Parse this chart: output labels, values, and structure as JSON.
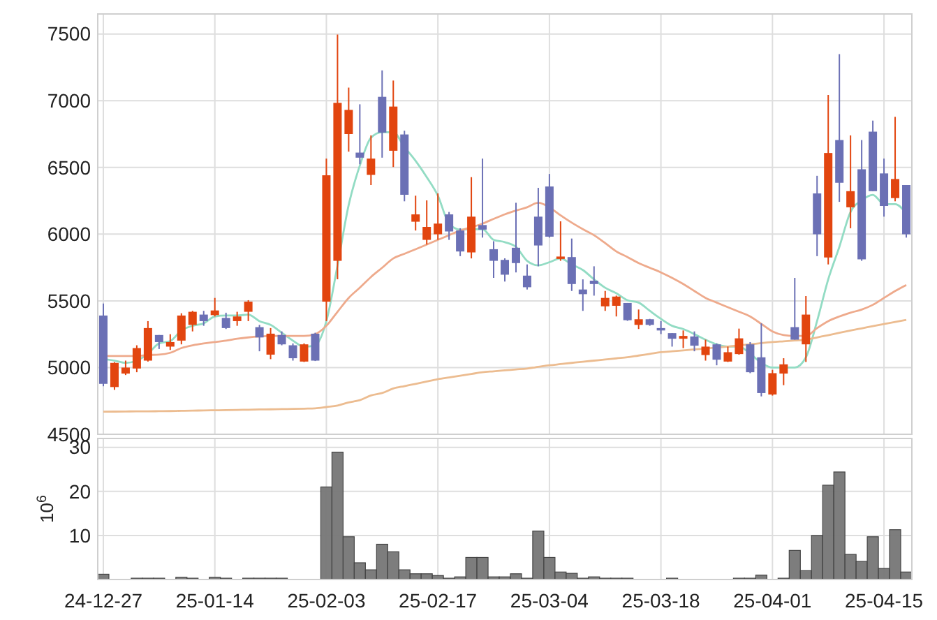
{
  "chart_data": [
    {
      "type": "candlestick",
      "categories": [
        null,
        null,
        null,
        null,
        null,
        null,
        null,
        null,
        null,
        null,
        null,
        null,
        null,
        null,
        null,
        null,
        null,
        null,
        null,
        null,
        null,
        null,
        null,
        null,
        null,
        null,
        null,
        null,
        null,
        null,
        null,
        null,
        null,
        null,
        null,
        null,
        null,
        null,
        null,
        null,
        null,
        null,
        null,
        null,
        null,
        null,
        null,
        null,
        null,
        null,
        null,
        null,
        null,
        null,
        null,
        null,
        null,
        null,
        null,
        null,
        null,
        null,
        null,
        null,
        null,
        null,
        null,
        null,
        null,
        null,
        null,
        null,
        null
      ],
      "ylim": [
        4500,
        7650
      ],
      "yticks": [
        4500,
        5000,
        5500,
        6000,
        6500,
        7000,
        7500
      ],
      "grid": true,
      "tick_labels": "y",
      "ohlc": [
        [
          5390,
          5480,
          4860,
          4878
        ],
        [
          4854,
          5040,
          4833,
          5035
        ],
        [
          4955,
          5052,
          4944,
          5000
        ],
        [
          4993,
          5167,
          4965,
          5146
        ],
        [
          5052,
          5348,
          5045,
          5296
        ],
        [
          5244,
          5244,
          5139,
          5191
        ],
        [
          5157,
          5250,
          5132,
          5191
        ],
        [
          5202,
          5407,
          5174,
          5390
        ],
        [
          5320,
          5425,
          5271,
          5418
        ],
        [
          5397,
          5425,
          5313,
          5348
        ],
        [
          5393,
          5522,
          5383,
          5428
        ],
        [
          5372,
          5411,
          5289,
          5296
        ],
        [
          5348,
          5418,
          5313,
          5383
        ],
        [
          5418,
          5505,
          5348,
          5494
        ],
        [
          5303,
          5320,
          5122,
          5226
        ],
        [
          5097,
          5296,
          5063,
          5254
        ],
        [
          5244,
          5271,
          5167,
          5174
        ],
        [
          5167,
          5181,
          5052,
          5070
        ],
        [
          5045,
          5181,
          5042,
          5174
        ],
        [
          5254,
          5261,
          5049,
          5052
        ],
        [
          5494,
          6566,
          5348,
          6441
        ],
        [
          5800,
          7495,
          5661,
          6984
        ],
        [
          6750,
          7098,
          6618,
          6931
        ],
        [
          6611,
          6973,
          6524,
          6573
        ],
        [
          6444,
          6740,
          6368,
          6566
        ],
        [
          7029,
          7227,
          6573,
          6761
        ],
        [
          6625,
          7151,
          6503,
          6956
        ],
        [
          6747,
          6775,
          6246,
          6295
        ],
        [
          6093,
          6288,
          6027,
          6148
        ],
        [
          5957,
          6253,
          5922,
          6054
        ],
        [
          5999,
          6305,
          5957,
          6079
        ],
        [
          6148,
          6166,
          5957,
          6020
        ],
        [
          6027,
          6044,
          5835,
          5870
        ],
        [
          5863,
          6427,
          5818,
          6131
        ],
        [
          6068,
          6566,
          5974,
          6034
        ],
        [
          5887,
          5947,
          5672,
          5800
        ],
        [
          5807,
          5818,
          5644,
          5696
        ],
        [
          5898,
          6235,
          5713,
          5783
        ],
        [
          5689,
          5773,
          5585,
          5602
        ],
        [
          6131,
          6347,
          5759,
          5915
        ],
        [
          6357,
          6451,
          5974,
          5981
        ],
        [
          5814,
          6096,
          5800,
          5832
        ],
        [
          5828,
          5967,
          5574,
          5626
        ],
        [
          5585,
          5661,
          5425,
          5550
        ],
        [
          5651,
          5759,
          5539,
          5626
        ],
        [
          5459,
          5574,
          5425,
          5522
        ],
        [
          5463,
          5539,
          5383,
          5532
        ],
        [
          5484,
          5484,
          5350,
          5355
        ],
        [
          5320,
          5435,
          5289,
          5362
        ],
        [
          5362,
          5365,
          5313,
          5320
        ],
        [
          5296,
          5348,
          5251,
          5278
        ],
        [
          5258,
          5258,
          5157,
          5216
        ],
        [
          5216,
          5278,
          5146,
          5237
        ],
        [
          5233,
          5271,
          5122,
          5164
        ],
        [
          5094,
          5209,
          5052,
          5157
        ],
        [
          5174,
          5181,
          5017,
          5059
        ],
        [
          5045,
          5157,
          5042,
          5115
        ],
        [
          5101,
          5292,
          5097,
          5219
        ],
        [
          5174,
          5191,
          4958,
          4965
        ],
        [
          5077,
          5331,
          4784,
          4809
        ],
        [
          4798,
          4983,
          4790,
          4958
        ],
        [
          4955,
          5070,
          4868,
          5024
        ],
        [
          5303,
          5672,
          5209,
          5209
        ],
        [
          5174,
          5536,
          5042,
          5397
        ],
        [
          6305,
          6437,
          5835,
          5999
        ],
        [
          5825,
          7043,
          5773,
          6608
        ],
        [
          6705,
          7349,
          6242,
          6385
        ],
        [
          6201,
          6740,
          6044,
          6322
        ],
        [
          6486,
          6705,
          5800,
          5811
        ],
        [
          6768,
          6851,
          6322,
          6322
        ],
        [
          6455,
          6566,
          6131,
          6211
        ],
        [
          6270,
          6879,
          6246,
          6413
        ],
        [
          6368,
          6368,
          5974,
          5999
        ]
      ],
      "colors": [
        "#6b70b5",
        "#e2450f",
        "#e2450f",
        "#e2450f",
        "#e2450f",
        "#6b70b5",
        "#e2450f",
        "#e2450f",
        "#e2450f",
        "#6b70b5",
        "#e2450f",
        "#6b70b5",
        "#e2450f",
        "#e2450f",
        "#6b70b5",
        "#e2450f",
        "#6b70b5",
        "#6b70b5",
        "#e2450f",
        "#6b70b5",
        "#e2450f",
        "#e2450f",
        "#e2450f",
        "#6b70b5",
        "#e2450f",
        "#6b70b5",
        "#e2450f",
        "#6b70b5",
        "#e2450f",
        "#e2450f",
        "#e2450f",
        "#6b70b5",
        "#6b70b5",
        "#e2450f",
        "#6b70b5",
        "#6b70b5",
        "#6b70b5",
        "#6b70b5",
        "#6b70b5",
        "#6b70b5",
        "#6b70b5",
        "#e2450f",
        "#6b70b5",
        "#6b70b5",
        "#6b70b5",
        "#e2450f",
        "#e2450f",
        "#6b70b5",
        "#e2450f",
        "#6b70b5",
        "#6b70b5",
        "#6b70b5",
        "#e2450f",
        "#6b70b5",
        "#e2450f",
        "#6b70b5",
        "#e2450f",
        "#e2450f",
        "#6b70b5",
        "#6b70b5",
        "#e2450f",
        "#e2450f",
        "#6b70b5",
        "#e2450f",
        "#6b70b5",
        "#e2450f",
        "#6b70b5",
        "#e2450f",
        "#6b70b5",
        "#6b70b5",
        "#6b70b5",
        "#e2450f",
        "#6b70b5"
      ],
      "series": [
        {
          "type": "line",
          "color": "#93dcc4",
          "values": [
            5063,
            5052,
            5035,
            5052,
            5104,
            5181,
            5198,
            5278,
            5313,
            5331,
            5383,
            5390,
            5390,
            5397,
            5348,
            5320,
            5261,
            5202,
            5157,
            5167,
            5348,
            5766,
            6218,
            6514,
            6723,
            6764,
            6764,
            6653,
            6549,
            6427,
            6288,
            6079,
            6034,
            6037,
            6037,
            5957,
            5940,
            5905,
            5800,
            5766,
            5790,
            5818,
            5773,
            5731,
            5661,
            5598,
            5557,
            5505,
            5487,
            5425,
            5365,
            5313,
            5289,
            5251,
            5209,
            5174,
            5157,
            5157,
            5104,
            5035,
            5000,
            5000,
            5000,
            5077,
            5348,
            5661,
            5905,
            6166,
            6253,
            6294,
            6225,
            6225,
            6155
          ]
        },
        {
          "type": "line",
          "color": "#eeaa8c",
          "values": [
            5087,
            5087,
            5087,
            5087,
            5094,
            5097,
            5111,
            5146,
            5167,
            5181,
            5191,
            5202,
            5216,
            5226,
            5233,
            5237,
            5237,
            5237,
            5237,
            5251,
            5313,
            5418,
            5522,
            5599,
            5679,
            5748,
            5818,
            5853,
            5887,
            5922,
            5957,
            5992,
            6027,
            6051,
            6079,
            6114,
            6148,
            6176,
            6201,
            6235,
            6201,
            6141,
            6086,
            6037,
            5992,
            5933,
            5870,
            5828,
            5783,
            5748,
            5713,
            5672,
            5626,
            5574,
            5522,
            5487,
            5452,
            5418,
            5383,
            5327,
            5271,
            5244,
            5237,
            5237,
            5296,
            5348,
            5383,
            5411,
            5435,
            5470,
            5522,
            5574,
            5619
          ]
        },
        {
          "type": "line",
          "color": "#ecbc90",
          "values": [
            4669,
            4670,
            4671,
            4672,
            4672,
            4673,
            4674,
            4676,
            4677,
            4679,
            4680,
            4681,
            4683,
            4684,
            4686,
            4687,
            4689,
            4690,
            4692,
            4694,
            4704,
            4715,
            4739,
            4756,
            4791,
            4809,
            4843,
            4861,
            4878,
            4896,
            4913,
            4926,
            4939,
            4952,
            4965,
            4972,
            4979,
            4986,
            4993,
            5005,
            5017,
            5026,
            5035,
            5044,
            5052,
            5060,
            5069,
            5077,
            5090,
            5102,
            5115,
            5122,
            5129,
            5136,
            5143,
            5150,
            5157,
            5166,
            5174,
            5183,
            5191,
            5197,
            5203,
            5209,
            5226,
            5243,
            5261,
            5278,
            5294,
            5310,
            5326,
            5342,
            5358
          ]
        }
      ]
    },
    {
      "type": "bar",
      "categories": [
        "24-12-27",
        null,
        null,
        null,
        null,
        null,
        null,
        null,
        null,
        null,
        "25-01-14",
        null,
        null,
        null,
        null,
        null,
        null,
        null,
        null,
        null,
        "25-02-03",
        null,
        null,
        null,
        null,
        null,
        null,
        null,
        null,
        null,
        "25-02-17",
        null,
        null,
        null,
        null,
        null,
        null,
        null,
        null,
        null,
        "25-03-04",
        null,
        null,
        null,
        null,
        null,
        null,
        null,
        null,
        null,
        "25-03-18",
        null,
        null,
        null,
        null,
        null,
        null,
        null,
        null,
        null,
        "25-04-01",
        null,
        null,
        null,
        null,
        null,
        null,
        null,
        null,
        null,
        "25-04-15",
        null,
        null
      ],
      "ylabel": "10$^{6}$",
      "ylim": [
        0,
        32
      ],
      "yticks": [
        10,
        20,
        30
      ],
      "grid": true,
      "color": "#767676",
      "values": [
        1.2,
        0,
        0,
        0.3,
        0.3,
        0.3,
        0,
        0.5,
        0.3,
        0,
        0.5,
        0.3,
        0,
        0.3,
        0.3,
        0.3,
        0.3,
        0,
        0,
        0,
        21.0,
        28.9,
        9.7,
        3.8,
        2.2,
        8.0,
        6.3,
        2.2,
        1.3,
        1.3,
        0.9,
        0.3,
        0.6,
        5.0,
        5.0,
        0.6,
        0.6,
        1.3,
        0.3,
        11.0,
        5.0,
        1.7,
        1.4,
        0.3,
        0.6,
        0.3,
        0.3,
        0.3,
        0,
        0,
        0,
        0.3,
        0,
        0,
        0,
        0,
        0,
        0.3,
        0.3,
        1.0,
        0,
        0.3,
        6.6,
        2.0,
        10.0,
        21.4,
        24.4,
        5.7,
        4.1,
        9.7,
        2.5,
        11.3,
        1.7
      ]
    }
  ]
}
